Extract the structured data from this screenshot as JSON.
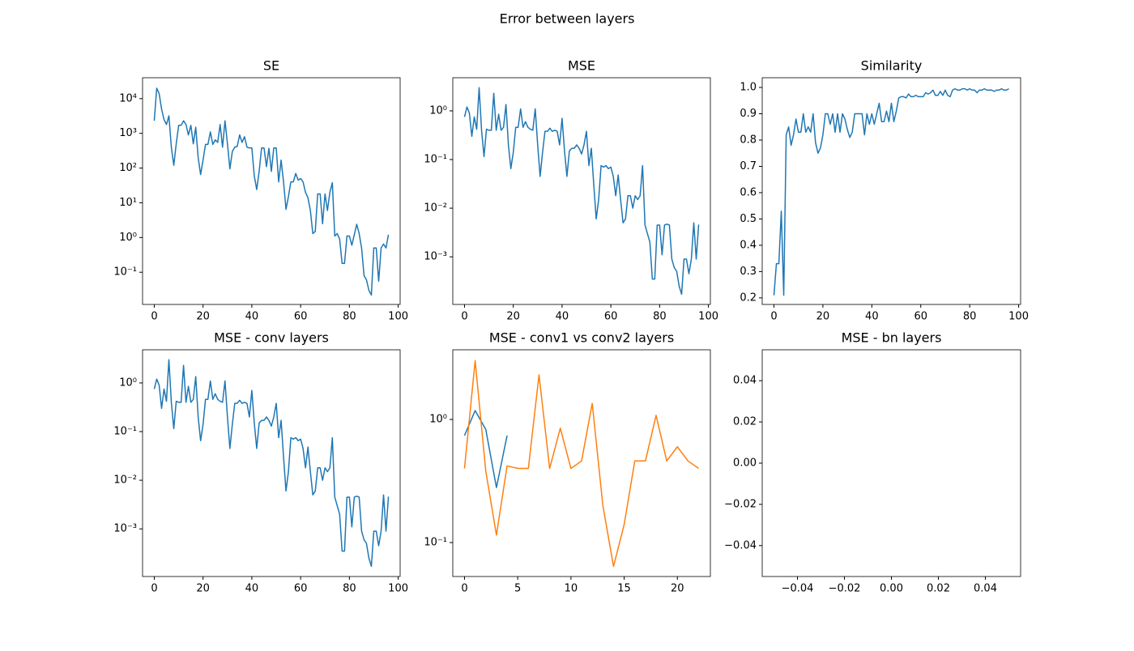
{
  "title": "Error between layers",
  "chart_data": [
    {
      "type": "line",
      "title": "SE",
      "yscale": "log",
      "xlim": [
        -4.8,
        100.8
      ],
      "ylim": [
        0.0118,
        40000
      ],
      "xticks": [
        0,
        20,
        40,
        60,
        80,
        100
      ],
      "yticks": [
        {
          "value": 0.1,
          "label": "10⁻¹"
        },
        {
          "value": 1,
          "label": "10⁰"
        },
        {
          "value": 10,
          "label": "10¹"
        },
        {
          "value": 100,
          "label": "10²"
        },
        {
          "value": 1000,
          "label": "10³"
        },
        {
          "value": 10000,
          "label": "10⁴"
        }
      ],
      "series": [
        {
          "color": "#1f77b4",
          "x": [
            0,
            1,
            2,
            3,
            4,
            5,
            6,
            7,
            8,
            9,
            10,
            11,
            12,
            13,
            14,
            15,
            16,
            17,
            18,
            19,
            20,
            21,
            22,
            23,
            24,
            25,
            26,
            27,
            28,
            29,
            30,
            31,
            32,
            33,
            34,
            35,
            36,
            37,
            38,
            39,
            40,
            41,
            42,
            43,
            44,
            45,
            46,
            47,
            48,
            49,
            50,
            51,
            52,
            53,
            54,
            55,
            56,
            57,
            58,
            59,
            60,
            61,
            62,
            63,
            64,
            65,
            66,
            67,
            68,
            69,
            70,
            71,
            72,
            73,
            74,
            75,
            76,
            77,
            78,
            79,
            80,
            81,
            82,
            83,
            84,
            85,
            86,
            87,
            88,
            89,
            90,
            91,
            92,
            93,
            94,
            95,
            96
          ],
          "values": [
            2300,
            20000,
            14000,
            5000,
            2500,
            1800,
            3200,
            400,
            120,
            500,
            1700,
            1700,
            2300,
            1800,
            900,
            1700,
            500,
            1500,
            200,
            65,
            170,
            480,
            480,
            1100,
            480,
            650,
            550,
            1800,
            400,
            2300,
            500,
            95,
            300,
            400,
            420,
            900,
            550,
            800,
            400,
            380,
            380,
            60,
            24,
            80,
            380,
            380,
            110,
            370,
            80,
            380,
            380,
            40,
            170,
            40,
            6.5,
            15,
            40,
            40,
            70,
            45,
            50,
            40,
            20,
            14,
            6,
            1.3,
            1.5,
            18,
            18,
            2.5,
            18,
            6,
            20,
            38,
            1.1,
            1.3,
            0.9,
            0.18,
            0.18,
            1.1,
            1.1,
            0.6,
            1.2,
            2.4,
            1.3,
            0.5,
            0.08,
            0.06,
            0.03,
            0.022,
            0.5,
            0.5,
            0.055,
            0.5,
            0.65,
            0.5,
            1.2
          ]
        }
      ]
    },
    {
      "type": "line",
      "title": "MSE",
      "yscale": "log",
      "xlim": [
        -4.8,
        100.8
      ],
      "ylim": [
        0.000105,
        4.8
      ],
      "xticks": [
        0,
        20,
        40,
        60,
        80,
        100
      ],
      "yticks": [
        {
          "value": 0.001,
          "label": "10⁻³"
        },
        {
          "value": 0.01,
          "label": "10⁻²"
        },
        {
          "value": 0.1,
          "label": "10⁻¹"
        },
        {
          "value": 1,
          "label": "10⁰"
        }
      ],
      "series": [
        {
          "color": "#1f77b4",
          "x": [
            0,
            1,
            2,
            3,
            4,
            5,
            6,
            7,
            8,
            9,
            10,
            11,
            12,
            13,
            14,
            15,
            16,
            17,
            18,
            19,
            20,
            21,
            22,
            23,
            24,
            25,
            26,
            27,
            28,
            29,
            30,
            31,
            32,
            33,
            34,
            35,
            36,
            37,
            38,
            39,
            40,
            41,
            42,
            43,
            44,
            45,
            46,
            47,
            48,
            49,
            50,
            51,
            52,
            53,
            54,
            55,
            56,
            57,
            58,
            59,
            60,
            61,
            62,
            63,
            64,
            65,
            66,
            67,
            68,
            69,
            70,
            71,
            72,
            73,
            74,
            75,
            76,
            77,
            78,
            79,
            80,
            81,
            82,
            83,
            84,
            85,
            86,
            87,
            88,
            89,
            90,
            91,
            92,
            93,
            94,
            95,
            96
          ],
          "values": [
            0.75,
            1.2,
            0.9,
            0.3,
            0.75,
            0.42,
            3.0,
            0.4,
            0.115,
            0.42,
            0.4,
            0.4,
            2.3,
            0.4,
            0.85,
            0.4,
            0.46,
            1.35,
            0.2,
            0.065,
            0.14,
            0.46,
            0.46,
            1.1,
            0.46,
            0.6,
            0.46,
            0.42,
            0.4,
            1.1,
            0.2,
            0.045,
            0.14,
            0.38,
            0.38,
            0.44,
            0.38,
            0.4,
            0.38,
            0.2,
            0.7,
            0.15,
            0.045,
            0.15,
            0.17,
            0.17,
            0.2,
            0.17,
            0.13,
            0.2,
            0.38,
            0.075,
            0.17,
            0.03,
            0.006,
            0.015,
            0.075,
            0.07,
            0.075,
            0.065,
            0.07,
            0.045,
            0.018,
            0.048,
            0.015,
            0.005,
            0.006,
            0.018,
            0.018,
            0.01,
            0.018,
            0.015,
            0.018,
            0.075,
            0.0045,
            0.003,
            0.002,
            0.00035,
            0.00035,
            0.0045,
            0.0045,
            0.0011,
            0.0045,
            0.0047,
            0.0045,
            0.0009,
            0.0006,
            0.0005,
            0.00025,
            0.00017,
            0.0009,
            0.0009,
            0.00045,
            0.0009,
            0.005,
            0.0009,
            0.0046
          ]
        }
      ]
    },
    {
      "type": "line",
      "title": "Similarity",
      "yscale": "linear",
      "xlim": [
        -4.8,
        100.8
      ],
      "ylim": [
        0.175,
        1.037
      ],
      "xticks": [
        0,
        20,
        40,
        60,
        80,
        100
      ],
      "yticks": [
        0.2,
        0.3,
        0.4,
        0.5,
        0.6,
        0.7,
        0.8,
        0.9,
        {
          "value": 1,
          "label": "1.0"
        }
      ],
      "series": [
        {
          "color": "#1f77b4",
          "x": [
            0,
            1,
            2,
            3,
            4,
            5,
            6,
            7,
            8,
            9,
            10,
            11,
            12,
            13,
            14,
            15,
            16,
            17,
            18,
            19,
            20,
            21,
            22,
            23,
            24,
            25,
            26,
            27,
            28,
            29,
            30,
            31,
            32,
            33,
            34,
            35,
            36,
            37,
            38,
            39,
            40,
            41,
            42,
            43,
            44,
            45,
            46,
            47,
            48,
            49,
            50,
            51,
            52,
            53,
            54,
            55,
            56,
            57,
            58,
            59,
            60,
            61,
            62,
            63,
            64,
            65,
            66,
            67,
            68,
            69,
            70,
            71,
            72,
            73,
            74,
            75,
            76,
            77,
            78,
            79,
            80,
            81,
            82,
            83,
            84,
            85,
            86,
            87,
            88,
            89,
            90,
            91,
            92,
            93,
            94,
            95,
            96
          ],
          "values": [
            0.21,
            0.33,
            0.33,
            0.53,
            0.21,
            0.82,
            0.85,
            0.78,
            0.82,
            0.88,
            0.83,
            0.83,
            0.9,
            0.83,
            0.85,
            0.83,
            0.9,
            0.79,
            0.75,
            0.77,
            0.82,
            0.9,
            0.9,
            0.86,
            0.9,
            0.83,
            0.9,
            0.83,
            0.9,
            0.88,
            0.84,
            0.81,
            0.83,
            0.9,
            0.9,
            0.9,
            0.9,
            0.82,
            0.9,
            0.86,
            0.9,
            0.86,
            0.9,
            0.94,
            0.87,
            0.87,
            0.91,
            0.87,
            0.94,
            0.87,
            0.91,
            0.96,
            0.965,
            0.965,
            0.96,
            0.975,
            0.965,
            0.965,
            0.97,
            0.965,
            0.965,
            0.965,
            0.98,
            0.975,
            0.98,
            0.99,
            0.97,
            0.97,
            0.985,
            0.97,
            0.99,
            0.97,
            0.965,
            0.99,
            0.995,
            0.99,
            0.99,
            0.995,
            0.995,
            0.99,
            0.995,
            0.99,
            0.99,
            0.98,
            0.99,
            0.99,
            0.995,
            0.99,
            0.99,
            0.99,
            0.985,
            0.99,
            0.99,
            0.995,
            0.99,
            0.99,
            0.995
          ]
        }
      ]
    },
    {
      "type": "line",
      "title": "MSE - conv layers",
      "yscale": "log",
      "xlim": [
        -4.8,
        100.8
      ],
      "ylim": [
        0.000105,
        4.8
      ],
      "xticks": [
        0,
        20,
        40,
        60,
        80,
        100
      ],
      "yticks": [
        {
          "value": 0.001,
          "label": "10⁻³"
        },
        {
          "value": 0.01,
          "label": "10⁻²"
        },
        {
          "value": 0.1,
          "label": "10⁻¹"
        },
        {
          "value": 1,
          "label": "10⁰"
        }
      ],
      "series": [
        {
          "color": "#1f77b4",
          "x": [
            0,
            1,
            2,
            3,
            4,
            5,
            6,
            7,
            8,
            9,
            10,
            11,
            12,
            13,
            14,
            15,
            16,
            17,
            18,
            19,
            20,
            21,
            22,
            23,
            24,
            25,
            26,
            27,
            28,
            29,
            30,
            31,
            32,
            33,
            34,
            35,
            36,
            37,
            38,
            39,
            40,
            41,
            42,
            43,
            44,
            45,
            46,
            47,
            48,
            49,
            50,
            51,
            52,
            53,
            54,
            55,
            56,
            57,
            58,
            59,
            60,
            61,
            62,
            63,
            64,
            65,
            66,
            67,
            68,
            69,
            70,
            71,
            72,
            73,
            74,
            75,
            76,
            77,
            78,
            79,
            80,
            81,
            82,
            83,
            84,
            85,
            86,
            87,
            88,
            89,
            90,
            91,
            92,
            93,
            94,
            95,
            96
          ],
          "values": [
            0.75,
            1.2,
            0.9,
            0.3,
            0.75,
            0.42,
            3.0,
            0.4,
            0.115,
            0.42,
            0.4,
            0.4,
            2.3,
            0.4,
            0.85,
            0.4,
            0.46,
            1.35,
            0.2,
            0.065,
            0.14,
            0.46,
            0.46,
            1.1,
            0.46,
            0.6,
            0.46,
            0.42,
            0.4,
            1.1,
            0.2,
            0.045,
            0.14,
            0.38,
            0.38,
            0.44,
            0.38,
            0.4,
            0.38,
            0.2,
            0.7,
            0.15,
            0.045,
            0.15,
            0.17,
            0.17,
            0.2,
            0.17,
            0.13,
            0.2,
            0.38,
            0.075,
            0.17,
            0.03,
            0.006,
            0.015,
            0.075,
            0.07,
            0.075,
            0.065,
            0.07,
            0.045,
            0.018,
            0.048,
            0.015,
            0.005,
            0.006,
            0.018,
            0.018,
            0.01,
            0.018,
            0.015,
            0.018,
            0.075,
            0.0045,
            0.003,
            0.002,
            0.00035,
            0.00035,
            0.0045,
            0.0045,
            0.0011,
            0.0045,
            0.0047,
            0.0045,
            0.0009,
            0.0006,
            0.0005,
            0.00025,
            0.00017,
            0.0009,
            0.0009,
            0.00045,
            0.0009,
            0.005,
            0.0009,
            0.0046
          ]
        }
      ]
    },
    {
      "type": "line",
      "title": "MSE - conv1 vs conv2 layers",
      "yscale": "log",
      "xlim": [
        -1.1,
        23.1
      ],
      "ylim": [
        0.053,
        3.68
      ],
      "xticks": [
        0,
        5,
        10,
        15,
        20
      ],
      "yticks": [
        {
          "value": 0.1,
          "label": "10⁻¹"
        },
        {
          "value": 1,
          "label": "10⁰"
        }
      ],
      "series": [
        {
          "color": "#1f77b4",
          "x": [
            0,
            1,
            2,
            3,
            4
          ],
          "values": [
            0.74,
            1.18,
            0.83,
            0.28,
            0.74
          ]
        },
        {
          "color": "#ff7f0e",
          "x": [
            0,
            1,
            2,
            3,
            4,
            5,
            6,
            7,
            8,
            9,
            10,
            11,
            12,
            13,
            14,
            15,
            16,
            17,
            18,
            19,
            20,
            21,
            22
          ],
          "values": [
            0.4,
            3.0,
            0.38,
            0.115,
            0.42,
            0.4,
            0.4,
            2.3,
            0.4,
            0.85,
            0.4,
            0.46,
            1.35,
            0.2,
            0.064,
            0.14,
            0.46,
            0.46,
            1.08,
            0.46,
            0.6,
            0.46,
            0.4
          ]
        }
      ]
    },
    {
      "type": "line",
      "title": "MSE - bn layers",
      "yscale": "linear",
      "xlim": [
        -0.055,
        0.055
      ],
      "ylim": [
        -0.055,
        0.055
      ],
      "xticks": [
        {
          "value": -0.04,
          "label": "−0.04"
        },
        {
          "value": -0.02,
          "label": "−0.02"
        },
        {
          "value": 0,
          "label": "0.00"
        },
        0.02,
        0.04
      ],
      "yticks": [
        {
          "value": -0.04,
          "label": "−0.04"
        },
        {
          "value": -0.02,
          "label": "−0.02"
        },
        {
          "value": 0,
          "label": "0.00"
        },
        0.02,
        0.04
      ],
      "series": []
    }
  ]
}
